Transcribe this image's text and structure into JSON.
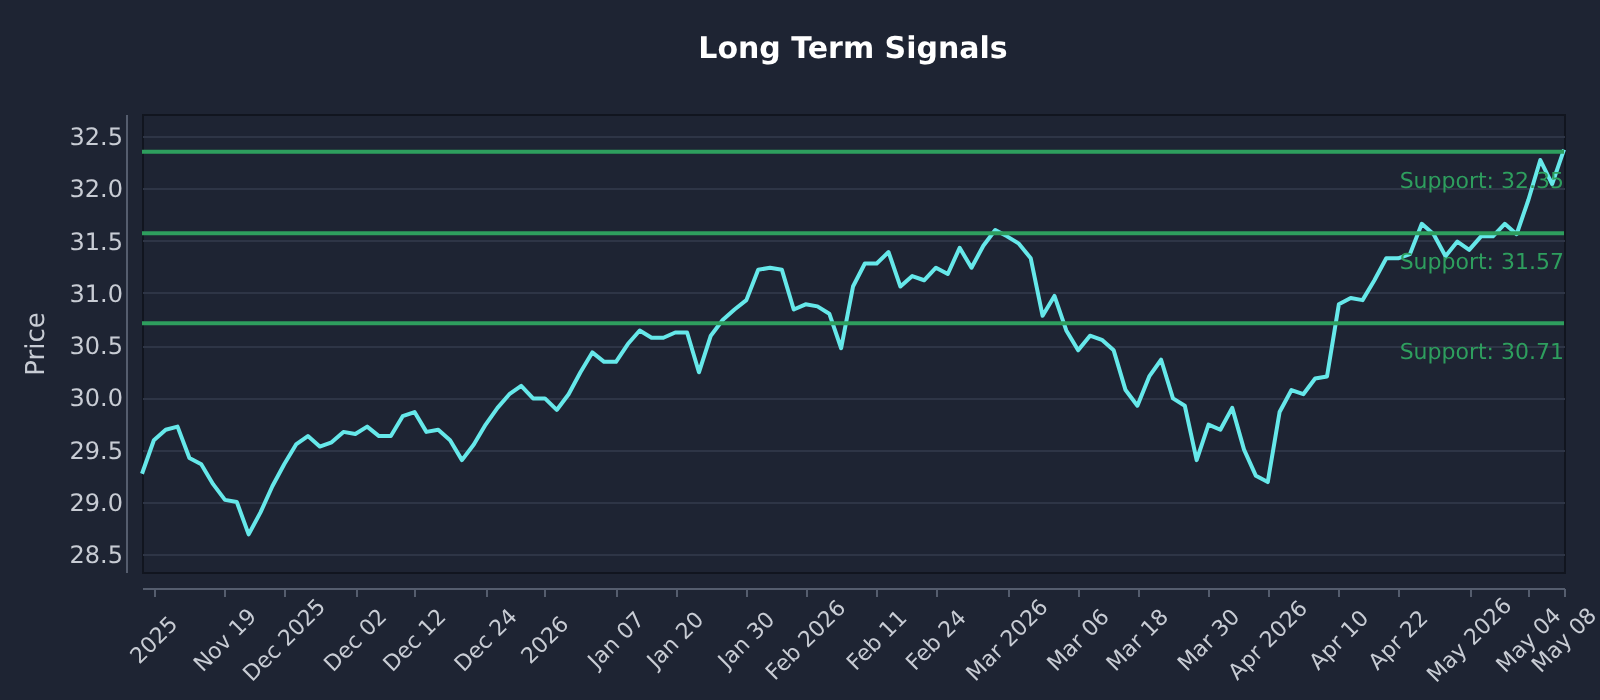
{
  "chart_data": {
    "type": "line",
    "title": "Long Term Signals",
    "ylabel": "Price",
    "categories": [
      null,
      "2025",
      null,
      null,
      null,
      null,
      null,
      "Nov 19",
      null,
      null,
      null,
      null,
      "Dec 2025",
      null,
      null,
      null,
      null,
      null,
      "Dec 02",
      null,
      null,
      null,
      null,
      "Dec 12",
      null,
      null,
      null,
      null,
      null,
      "Dec 24",
      null,
      null,
      null,
      null,
      "2026",
      null,
      null,
      null,
      null,
      null,
      "Jan 07",
      null,
      null,
      null,
      null,
      "Jan 20",
      null,
      null,
      null,
      null,
      null,
      "Jan 30",
      null,
      null,
      null,
      null,
      "Feb 2026",
      null,
      null,
      null,
      null,
      null,
      "Feb 11",
      null,
      null,
      null,
      null,
      "Feb 24",
      null,
      null,
      null,
      null,
      null,
      "Mar 2026",
      null,
      null,
      null,
      null,
      null,
      "Mar 06",
      null,
      null,
      null,
      null,
      "Mar 18",
      null,
      null,
      null,
      null,
      null,
      "Mar 30",
      null,
      null,
      null,
      null,
      "Apr 2026",
      null,
      null,
      null,
      null,
      null,
      "Apr 10",
      null,
      null,
      null,
      null,
      "Apr 22",
      null,
      null,
      null,
      null,
      null,
      "May 2026",
      null,
      null,
      null,
      null,
      "May 04",
      null,
      null,
      "May 08"
    ],
    "series": [
      {
        "color": "#66e8ea",
        "values": [
          29.27,
          29.59,
          29.69,
          29.72,
          29.42,
          29.36,
          29.17,
          29.02,
          29.0,
          28.69,
          28.9,
          29.15,
          29.36,
          29.55,
          29.63,
          29.53,
          29.57,
          29.67,
          29.65,
          29.72,
          29.63,
          29.63,
          29.82,
          29.86,
          29.67,
          29.69,
          29.59,
          29.4,
          29.55,
          29.74,
          29.9,
          30.03,
          30.11,
          29.99,
          29.99,
          29.88,
          30.03,
          30.24,
          30.43,
          30.34,
          30.34,
          30.51,
          30.64,
          30.57,
          30.57,
          30.62,
          30.62,
          30.24,
          30.59,
          30.74,
          30.84,
          30.93,
          31.22,
          31.24,
          31.22,
          30.84,
          30.89,
          30.87,
          30.8,
          30.47,
          31.06,
          31.28,
          31.28,
          31.39,
          31.06,
          31.16,
          31.12,
          31.24,
          31.18,
          31.43,
          31.24,
          31.45,
          31.6,
          31.54,
          31.47,
          31.33,
          30.78,
          30.97,
          30.64,
          30.45,
          30.59,
          30.55,
          30.45,
          30.07,
          29.92,
          30.2,
          30.36,
          29.99,
          29.92,
          29.4,
          29.74,
          29.69,
          29.9,
          29.5,
          29.25,
          29.19,
          29.86,
          30.07,
          30.03,
          30.18,
          30.2,
          30.89,
          30.95,
          30.93,
          31.12,
          31.33,
          31.33,
          31.37,
          31.66,
          31.56,
          31.35,
          31.49,
          31.41,
          31.54,
          31.54,
          31.66,
          31.56,
          31.89,
          32.27,
          32.04,
          32.37
        ]
      }
    ],
    "ylim": [
      28.33,
      32.71
    ],
    "yticks": [
      28.5,
      {
        "value": 29,
        "label": "29.0"
      },
      29.5,
      {
        "value": 30,
        "label": "30.0"
      },
      30.5,
      {
        "value": 31,
        "label": "31.0"
      },
      31.5,
      {
        "value": 32,
        "label": "32.0"
      },
      32.5
    ],
    "grid": "y",
    "ref_lines": [
      {
        "axis": "y",
        "value": 32.35,
        "label": "Support: 32.35",
        "color": "#2e9e5e"
      },
      {
        "axis": "y",
        "value": 31.57,
        "label": "Support: 31.57",
        "color": "#2e9e5e"
      },
      {
        "axis": "y",
        "value": 30.71,
        "label": "Support: 30.71",
        "color": "#2e9e5e"
      }
    ]
  }
}
